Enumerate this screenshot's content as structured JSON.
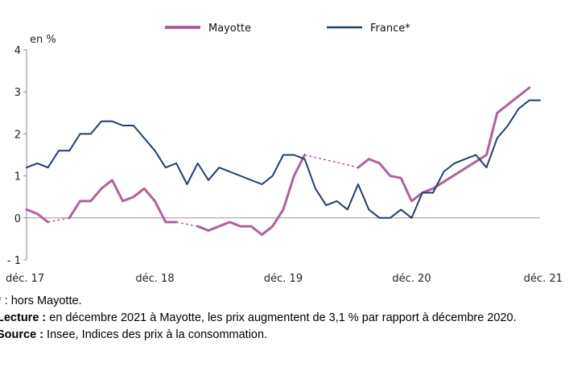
{
  "chart_data": {
    "type": "line",
    "unit_label": "en %",
    "x_tick_labels": [
      "déc. 17",
      "déc. 18",
      "déc. 19",
      "déc. 20",
      "déc. 21"
    ],
    "x_ticks": [
      0,
      12,
      24,
      36,
      48
    ],
    "xlim": [
      0,
      48
    ],
    "ylim": [
      -1,
      4
    ],
    "y_ticks": [
      -1,
      0,
      1,
      2,
      3,
      4
    ],
    "y_tick_labels": [
      "- 1",
      "0",
      "1",
      "2",
      "3",
      "4"
    ],
    "legend_position": "top",
    "series": [
      {
        "name": "Mayotte",
        "color": "#b0619c",
        "points": [
          [
            0,
            0.2
          ],
          [
            1,
            0.1
          ],
          [
            2,
            -0.1
          ],
          [
            4,
            0.0
          ],
          [
            5,
            0.4
          ],
          [
            6,
            0.4
          ],
          [
            7,
            0.7
          ],
          [
            8,
            0.9
          ],
          [
            9,
            0.4
          ],
          [
            10,
            0.5
          ],
          [
            11,
            0.7
          ],
          [
            12,
            0.4
          ],
          [
            13,
            -0.1
          ],
          [
            14,
            -0.1
          ],
          [
            16,
            -0.2
          ],
          [
            17,
            -0.3
          ],
          [
            18,
            -0.2
          ],
          [
            19,
            -0.1
          ],
          [
            20,
            -0.2
          ],
          [
            21,
            -0.2
          ],
          [
            22,
            -0.4
          ],
          [
            23,
            -0.2
          ],
          [
            24,
            0.2
          ],
          [
            25,
            1.0
          ],
          [
            26,
            1.5
          ],
          [
            31,
            1.2
          ],
          [
            32,
            1.4
          ],
          [
            33,
            1.3
          ],
          [
            34,
            1.0
          ],
          [
            35,
            0.95
          ],
          [
            36,
            0.4
          ],
          [
            37,
            0.6
          ],
          [
            38,
            0.7
          ],
          [
            43,
            1.5
          ],
          [
            44,
            2.5
          ],
          [
            45,
            2.7
          ],
          [
            46,
            2.9
          ],
          [
            47,
            3.1
          ]
        ],
        "dashed_gaps": [
          [
            2,
            4
          ],
          [
            14,
            16
          ],
          [
            26,
            31
          ],
          [
            37,
            43
          ]
        ]
      },
      {
        "name": "France*",
        "color": "#1f3f6c",
        "points": [
          [
            0,
            1.2
          ],
          [
            1,
            1.3
          ],
          [
            2,
            1.2
          ],
          [
            3,
            1.6
          ],
          [
            4,
            1.6
          ],
          [
            5,
            2.0
          ],
          [
            6,
            2.0
          ],
          [
            7,
            2.3
          ],
          [
            8,
            2.3
          ],
          [
            9,
            2.2
          ],
          [
            10,
            2.2
          ],
          [
            11,
            1.9
          ],
          [
            12,
            1.6
          ],
          [
            13,
            1.2
          ],
          [
            14,
            1.3
          ],
          [
            15,
            0.8
          ],
          [
            16,
            1.3
          ],
          [
            17,
            0.9
          ],
          [
            18,
            1.2
          ],
          [
            22,
            0.8
          ],
          [
            23,
            1.0
          ],
          [
            24,
            1.5
          ],
          [
            25,
            1.5
          ],
          [
            26,
            1.4
          ],
          [
            27,
            0.7
          ],
          [
            28,
            0.3
          ],
          [
            29,
            0.4
          ],
          [
            30,
            0.2
          ],
          [
            31,
            0.8
          ],
          [
            32,
            0.2
          ],
          [
            33,
            0.0
          ],
          [
            34,
            0.0
          ],
          [
            35,
            0.2
          ],
          [
            36,
            0.0
          ],
          [
            37,
            0.6
          ],
          [
            38,
            0.6
          ],
          [
            39,
            1.1
          ],
          [
            40,
            1.3
          ],
          [
            41,
            1.4
          ],
          [
            42,
            1.5
          ],
          [
            43,
            1.2
          ],
          [
            44,
            1.9
          ],
          [
            45,
            2.2
          ],
          [
            46,
            2.6
          ],
          [
            47,
            2.8
          ],
          [
            48,
            2.8
          ]
        ]
      }
    ]
  },
  "notes": {
    "star_note": "* : hors Mayotte.",
    "lecture_label": "Lecture :",
    "lecture_text": " en décembre 2021 à Mayotte, les prix augmentent de 3,1 % par rapport à décembre 2020.",
    "source_label": "Source :",
    "source_text": " Insee, Indices des prix à la consommation."
  }
}
